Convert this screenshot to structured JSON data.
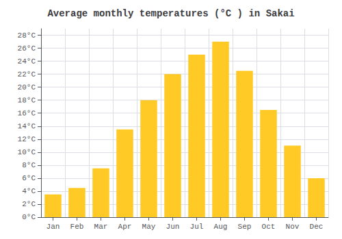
{
  "chart_data": {
    "type": "bar",
    "title": "Average monthly temperatures (°C ) in Sakai",
    "categories": [
      "Jan",
      "Feb",
      "Mar",
      "Apr",
      "May",
      "Jun",
      "Jul",
      "Aug",
      "Sep",
      "Oct",
      "Nov",
      "Dec"
    ],
    "values": [
      3.5,
      4.5,
      7.5,
      13.5,
      18.0,
      22.0,
      25.0,
      27.0,
      22.5,
      16.5,
      11.0,
      6.0
    ],
    "color": "#FFC926",
    "ylim": [
      0,
      29
    ],
    "yticks": [
      {
        "value": 0,
        "label": "0°C"
      },
      {
        "value": 2,
        "label": "2°C"
      },
      {
        "value": 4,
        "label": "4°C"
      },
      {
        "value": 6,
        "label": "6°C"
      },
      {
        "value": 8,
        "label": "8°C"
      },
      {
        "value": 10,
        "label": "10°C"
      },
      {
        "value": 12,
        "label": "12°C"
      },
      {
        "value": 14,
        "label": "14°C"
      },
      {
        "value": 16,
        "label": "16°C"
      },
      {
        "value": 18,
        "label": "18°C"
      },
      {
        "value": 20,
        "label": "20°C"
      },
      {
        "value": 22,
        "label": "22°C"
      },
      {
        "value": 24,
        "label": "24°C"
      },
      {
        "value": 26,
        "label": "26°C"
      },
      {
        "value": 28,
        "label": "28°C"
      }
    ],
    "grid": true
  }
}
